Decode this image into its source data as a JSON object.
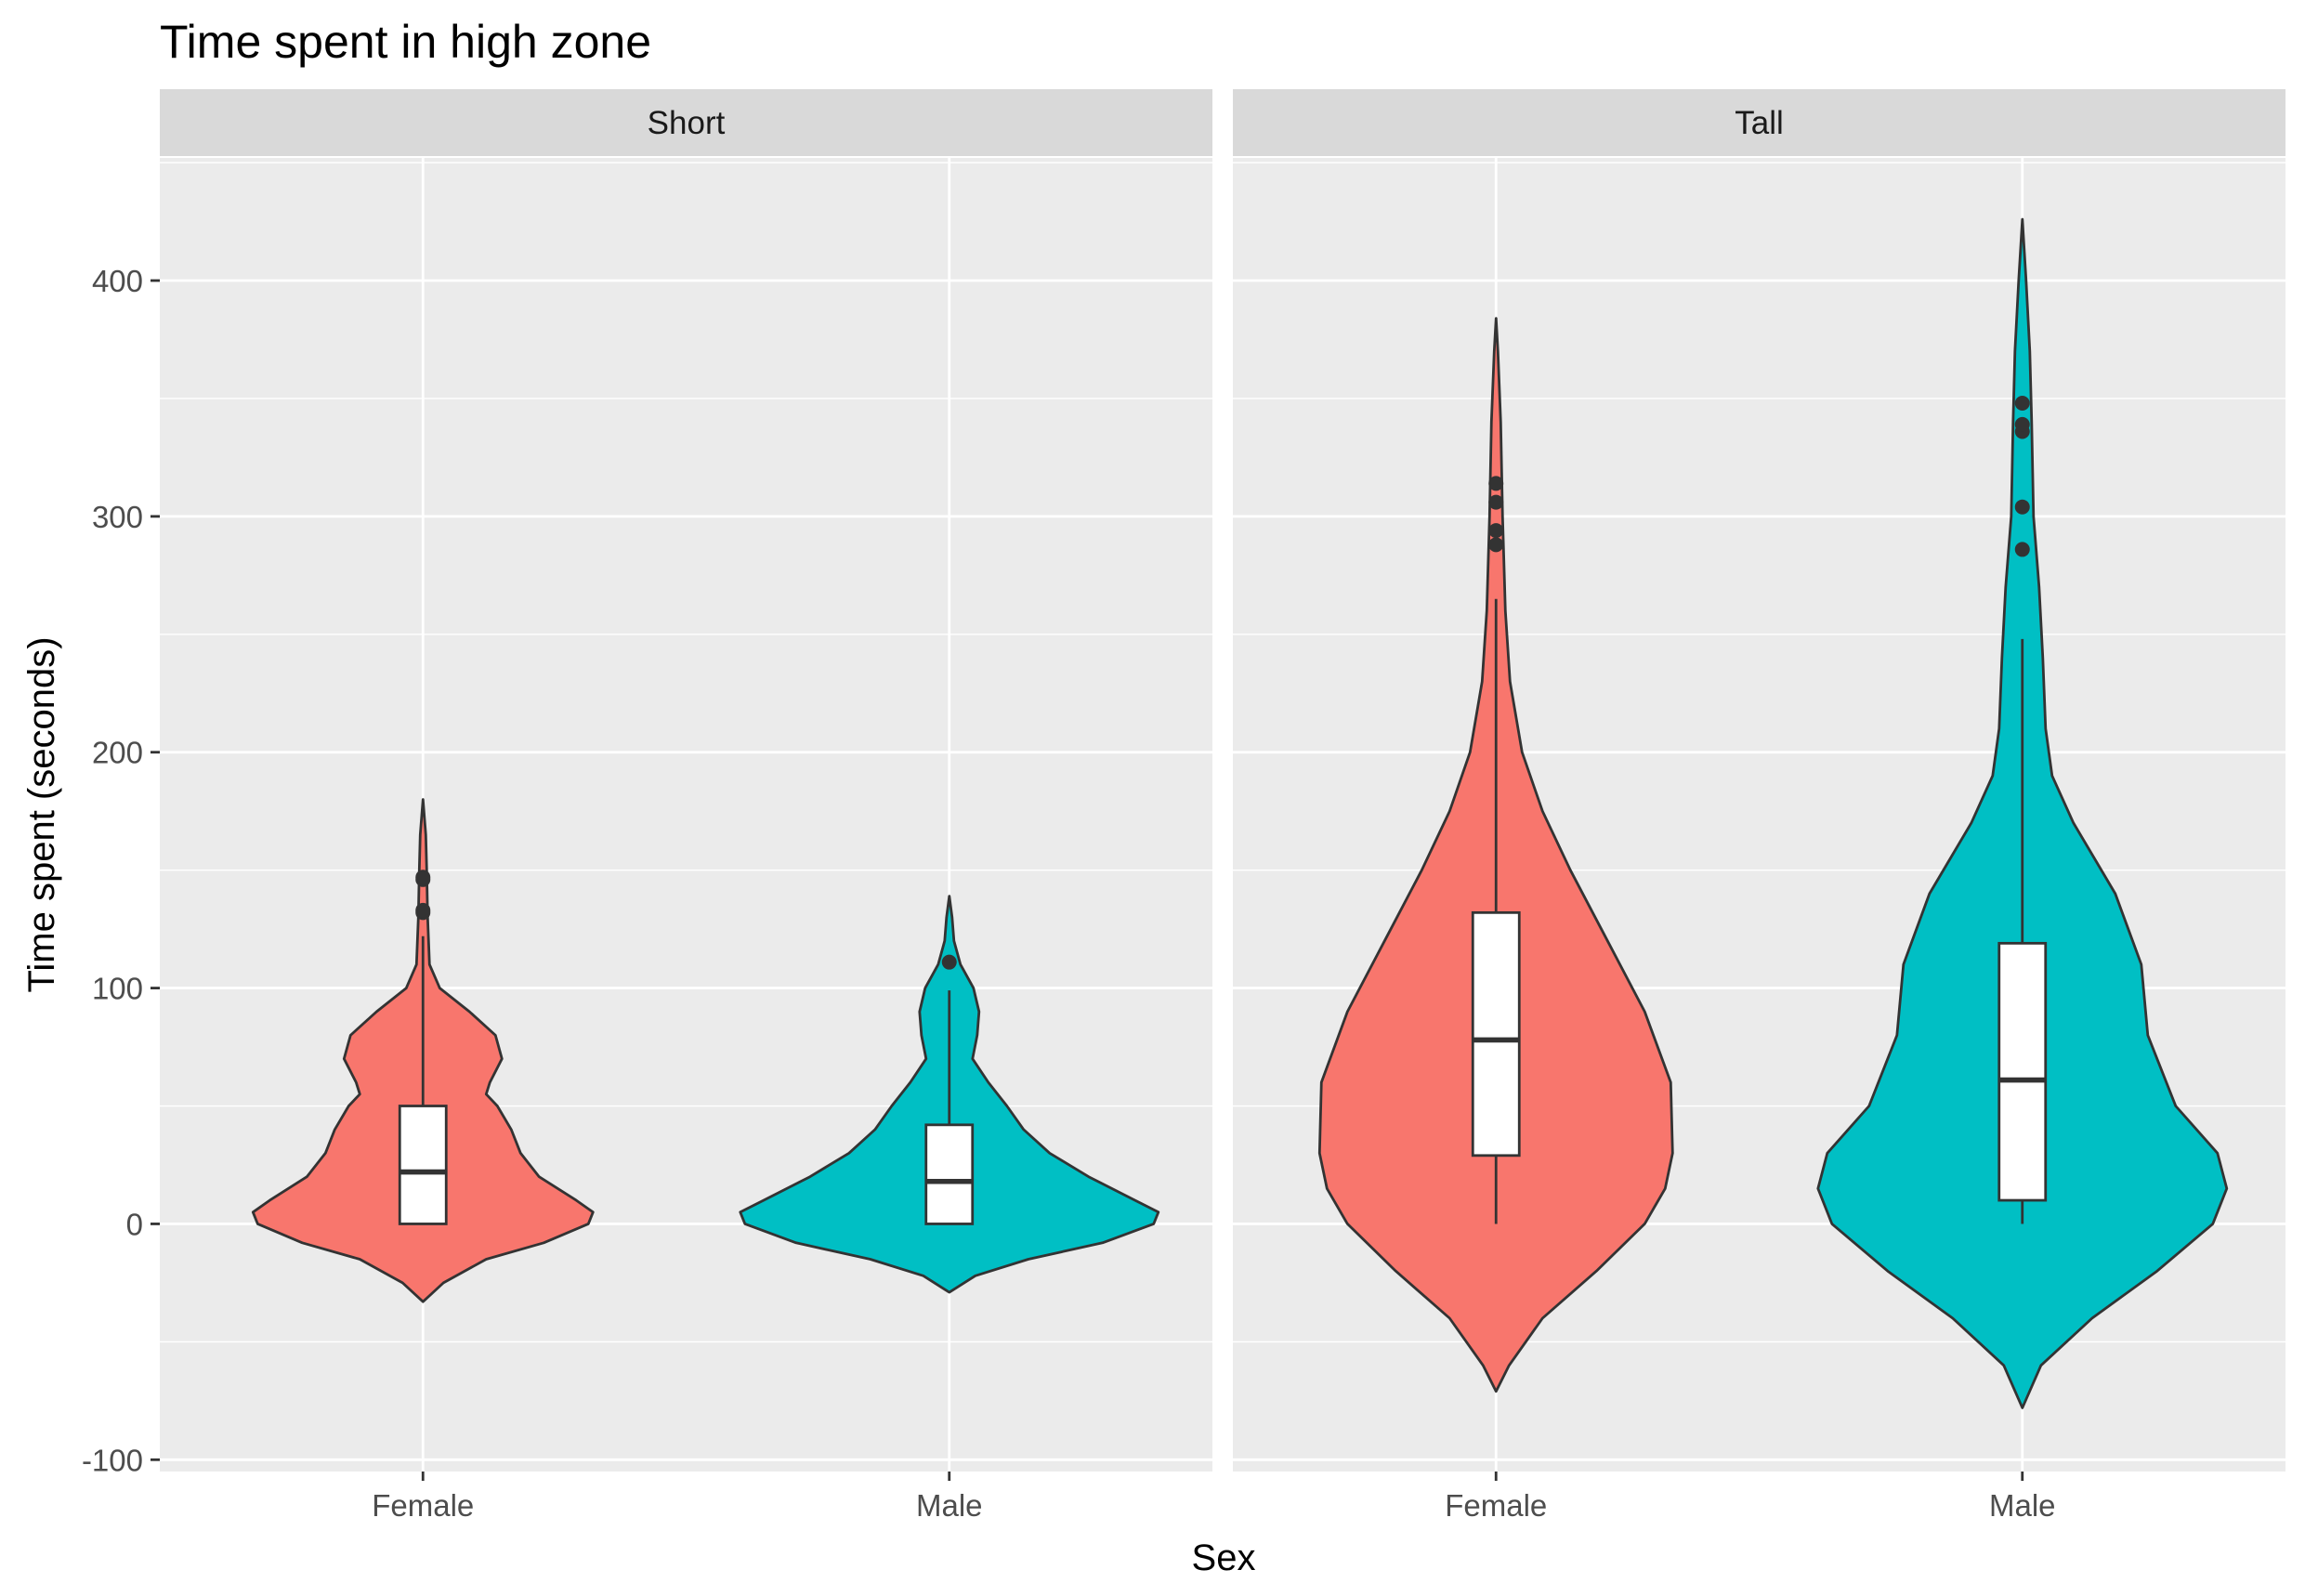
{
  "chart_data": {
    "type": "violin",
    "title": "Time spent in high zone",
    "xlabel": "Sex",
    "ylabel": "Time spent (seconds)",
    "ylim": [
      -105,
      452
    ],
    "y_ticks": [
      -100,
      0,
      100,
      200,
      300,
      400
    ],
    "grid": true,
    "legend": "none",
    "categories": [
      "Female",
      "Male"
    ],
    "colors": {
      "Female": "#F8766D",
      "Male": "#00BFC4"
    },
    "panels": [
      {
        "name": "Short",
        "groups": [
          {
            "name": "Female",
            "min": -33,
            "max": 180,
            "density": [
              [
                -33,
                0
              ],
              [
                -25,
                22
              ],
              [
                -15,
                68
              ],
              [
                -8,
                130
              ],
              [
                0,
                178
              ],
              [
                5,
                183
              ],
              [
                10,
                165
              ],
              [
                20,
                125
              ],
              [
                30,
                105
              ],
              [
                40,
                95
              ],
              [
                50,
                80
              ],
              [
                55,
                68
              ],
              [
                60,
                72
              ],
              [
                70,
                85
              ],
              [
                80,
                78
              ],
              [
                90,
                50
              ],
              [
                100,
                18
              ],
              [
                110,
                7
              ],
              [
                130,
                5
              ],
              [
                150,
                4
              ],
              [
                165,
                3
              ],
              [
                180,
                0
              ]
            ],
            "box": {
              "lower": 0,
              "q1": 0,
              "median": 22,
              "q3": 50,
              "upper": 122
            },
            "outliers": [
              132,
              133,
              146,
              147
            ]
          },
          {
            "name": "Male",
            "min": -29,
            "max": 139,
            "density": [
              [
                -29,
                0
              ],
              [
                -22,
                28
              ],
              [
                -15,
                85
              ],
              [
                -8,
                165
              ],
              [
                0,
                220
              ],
              [
                5,
                225
              ],
              [
                10,
                200
              ],
              [
                20,
                150
              ],
              [
                30,
                108
              ],
              [
                40,
                80
              ],
              [
                50,
                62
              ],
              [
                60,
                42
              ],
              [
                70,
                25
              ],
              [
                80,
                30
              ],
              [
                90,
                32
              ],
              [
                100,
                26
              ],
              [
                110,
                12
              ],
              [
                120,
                5
              ],
              [
                130,
                3
              ],
              [
                139,
                0
              ]
            ],
            "box": {
              "lower": 0,
              "q1": 0,
              "median": 18,
              "q3": 42,
              "upper": 99
            },
            "outliers": [
              111
            ]
          }
        ]
      },
      {
        "name": "Tall",
        "groups": [
          {
            "name": "Female",
            "min": -71,
            "max": 384,
            "density": [
              [
                -71,
                0
              ],
              [
                -60,
                14
              ],
              [
                -40,
                50
              ],
              [
                -20,
                108
              ],
              [
                0,
                160
              ],
              [
                15,
                182
              ],
              [
                30,
                190
              ],
              [
                60,
                188
              ],
              [
                90,
                160
              ],
              [
                120,
                120
              ],
              [
                150,
                80
              ],
              [
                175,
                50
              ],
              [
                200,
                28
              ],
              [
                230,
                15
              ],
              [
                260,
                10
              ],
              [
                300,
                7
              ],
              [
                340,
                5
              ],
              [
                370,
                2
              ],
              [
                384,
                0
              ]
            ],
            "box": {
              "lower": 0,
              "q1": 29,
              "median": 78,
              "q3": 132,
              "upper": 265
            },
            "outliers": [
              288,
              294,
              306,
              314
            ]
          },
          {
            "name": "Male",
            "min": -78,
            "max": 426,
            "density": [
              [
                -78,
                0
              ],
              [
                -60,
                20
              ],
              [
                -40,
                75
              ],
              [
                -20,
                145
              ],
              [
                0,
                205
              ],
              [
                15,
                220
              ],
              [
                30,
                210
              ],
              [
                50,
                165
              ],
              [
                80,
                135
              ],
              [
                110,
                128
              ],
              [
                140,
                100
              ],
              [
                170,
                55
              ],
              [
                190,
                32
              ],
              [
                210,
                25
              ],
              [
                240,
                22
              ],
              [
                270,
                18
              ],
              [
                300,
                12
              ],
              [
                340,
                10
              ],
              [
                370,
                8
              ],
              [
                400,
                4
              ],
              [
                426,
                0
              ]
            ],
            "box": {
              "lower": 0,
              "q1": 10,
              "median": 61,
              "q3": 119,
              "upper": 248
            },
            "outliers": [
              286,
              304,
              336,
              339,
              348
            ]
          }
        ]
      }
    ]
  }
}
